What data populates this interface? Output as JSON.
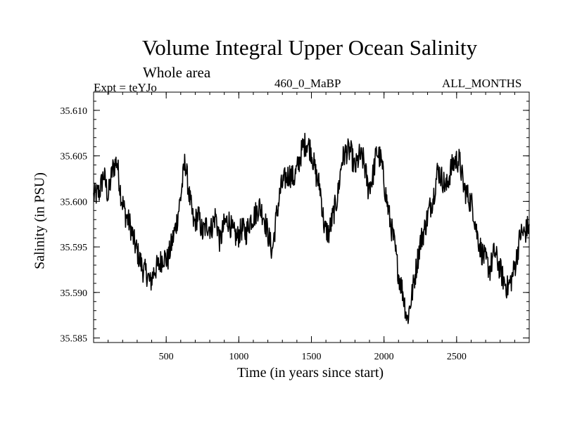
{
  "header": {
    "title": "Volume Integral Upper Ocean Salinity",
    "subtitle": "Whole area",
    "experiment": "Expt = teYJo",
    "run_id": "460_0_MaBP",
    "months": "ALL_MONTHS"
  },
  "chart_data": {
    "type": "line",
    "title": "Volume Integral Upper Ocean Salinity",
    "xlabel": "Time (in years since start)",
    "ylabel": "Salinity (in PSU)",
    "xlim": [
      0,
      3000
    ],
    "ylim": [
      35.5845,
      35.612
    ],
    "xticks": [
      500,
      1000,
      1500,
      2000,
      2500
    ],
    "yticks": [
      35.585,
      35.59,
      35.595,
      35.6,
      35.605,
      35.61
    ],
    "xtick_labels": [
      "500",
      "1000",
      "1500",
      "2000",
      "2500"
    ],
    "ytick_labels": [
      "35.585",
      "35.590",
      "35.595",
      "35.600",
      "35.605",
      "35.610"
    ],
    "grid": false,
    "series": [
      {
        "name": "Salinity",
        "x": [
          0,
          40,
          70,
          100,
          130,
          160,
          190,
          220,
          250,
          280,
          310,
          340,
          370,
          390,
          420,
          450,
          480,
          510,
          540,
          570,
          600,
          630,
          660,
          690,
          720,
          750,
          780,
          810,
          840,
          870,
          900,
          930,
          960,
          990,
          1020,
          1050,
          1080,
          1110,
          1140,
          1170,
          1200,
          1230,
          1260,
          1290,
          1320,
          1350,
          1380,
          1410,
          1440,
          1470,
          1500,
          1530,
          1560,
          1590,
          1620,
          1650,
          1680,
          1710,
          1740,
          1770,
          1800,
          1830,
          1860,
          1890,
          1920,
          1950,
          1980,
          2010,
          2040,
          2070,
          2100,
          2130,
          2160,
          2190,
          2220,
          2250,
          2280,
          2310,
          2340,
          2370,
          2400,
          2430,
          2460,
          2490,
          2520,
          2550,
          2580,
          2610,
          2640,
          2670,
          2700,
          2730,
          2760,
          2790,
          2820,
          2850,
          2880,
          2910,
          2940,
          2970,
          3000
        ],
        "values": [
          35.6005,
          35.601,
          35.603,
          35.6005,
          35.6035,
          35.6045,
          35.6005,
          35.5985,
          35.5975,
          35.5955,
          35.594,
          35.5925,
          35.592,
          35.591,
          35.5925,
          35.593,
          35.594,
          35.5935,
          35.5955,
          35.5975,
          35.6005,
          35.6045,
          35.6005,
          35.5975,
          35.5985,
          35.5965,
          35.5975,
          35.597,
          35.5985,
          35.5955,
          35.5975,
          35.598,
          35.5965,
          35.596,
          35.597,
          35.5965,
          35.598,
          35.5985,
          35.5995,
          35.5985,
          35.5965,
          35.5945,
          35.5985,
          35.6015,
          35.6025,
          35.603,
          35.6025,
          35.604,
          35.606,
          35.6065,
          35.6055,
          35.603,
          35.6015,
          35.597,
          35.5965,
          35.5985,
          35.6005,
          35.6045,
          35.6055,
          35.6055,
          35.6035,
          35.605,
          35.6045,
          35.6015,
          35.6025,
          35.6055,
          35.6045,
          35.601,
          35.598,
          35.5955,
          35.592,
          35.59,
          35.587,
          35.5895,
          35.5925,
          35.5955,
          35.597,
          35.599,
          35.6005,
          35.6035,
          35.6025,
          35.6015,
          35.6035,
          35.6045,
          35.6045,
          35.6015,
          35.6005,
          35.5995,
          35.5965,
          35.5945,
          35.5935,
          35.5925,
          35.5945,
          35.593,
          35.5915,
          35.5905,
          35.5915,
          35.5935,
          35.5965,
          35.5965,
          35.5975
        ]
      }
    ]
  }
}
